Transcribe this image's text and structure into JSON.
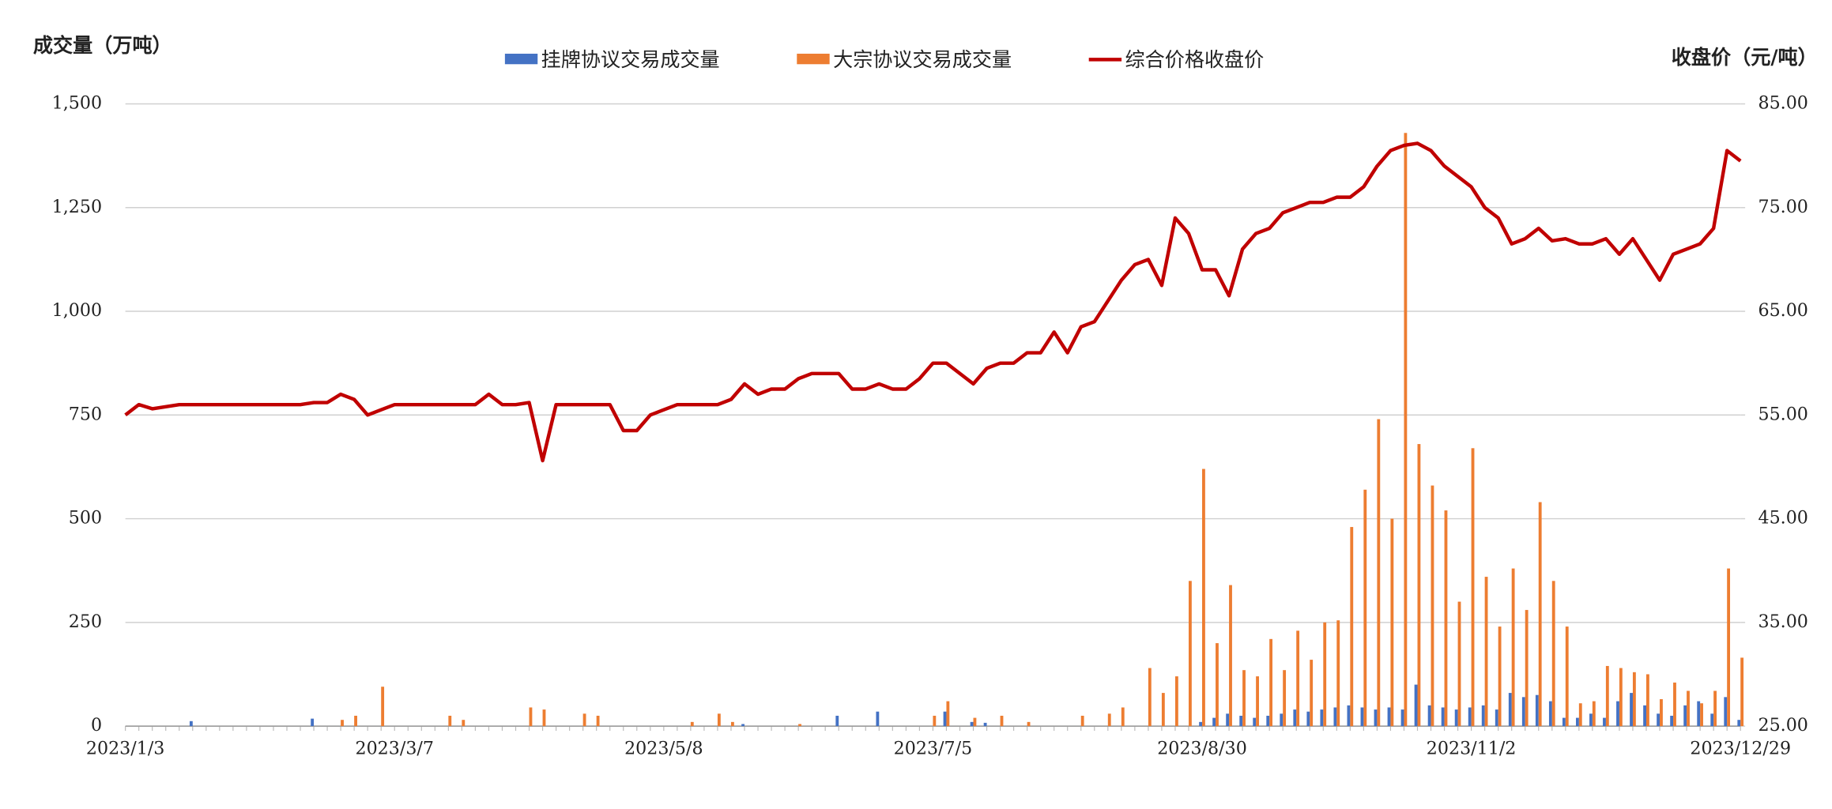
{
  "chart_data": {
    "type": "bar",
    "y_label": "成交量（万吨）",
    "y2_label": "收盘价（元/吨）",
    "categories": [
      "2023/1/3",
      null,
      null,
      null,
      null,
      null,
      null,
      null,
      null,
      null,
      null,
      null,
      null,
      null,
      null,
      null,
      null,
      null,
      null,
      null,
      "2023/3/7",
      null,
      null,
      null,
      null,
      null,
      null,
      null,
      null,
      null,
      null,
      null,
      null,
      null,
      null,
      null,
      null,
      null,
      null,
      null,
      "2023/5/8",
      null,
      null,
      null,
      null,
      null,
      null,
      null,
      null,
      null,
      null,
      null,
      null,
      null,
      null,
      null,
      null,
      null,
      null,
      null,
      "2023/7/5",
      null,
      null,
      null,
      null,
      null,
      null,
      null,
      null,
      null,
      null,
      null,
      null,
      null,
      null,
      null,
      null,
      null,
      null,
      null,
      "2023/8/30",
      null,
      null,
      null,
      null,
      null,
      null,
      null,
      null,
      null,
      null,
      null,
      null,
      null,
      null,
      null,
      null,
      null,
      null,
      null,
      "2023/11/2",
      null,
      null,
      null,
      null,
      null,
      null,
      null,
      null,
      null,
      null,
      null,
      null,
      null,
      null,
      null,
      null,
      null,
      null,
      null,
      "2023/12/29"
    ],
    "series": [
      {
        "name": "挂牌协议交易成交量",
        "type": "bar",
        "color": "#4472c4",
        "values": [
          0,
          0,
          0,
          0,
          0,
          12,
          0,
          0,
          0,
          0,
          0,
          0,
          0,
          0,
          18,
          0,
          0,
          0,
          0,
          0,
          0,
          0,
          0,
          0,
          0,
          0,
          0,
          0,
          0,
          0,
          0,
          0,
          0,
          0,
          0,
          0,
          0,
          0,
          0,
          0,
          0,
          0,
          0,
          0,
          0,
          0,
          5,
          0,
          0,
          0,
          0,
          0,
          0,
          25,
          0,
          0,
          35,
          0,
          0,
          0,
          0,
          35,
          0,
          10,
          8,
          0,
          0,
          0,
          0,
          0,
          0,
          0,
          0,
          0,
          0,
          0,
          0,
          0,
          0,
          0,
          10,
          20,
          30,
          25,
          20,
          25,
          30,
          40,
          35,
          40,
          45,
          50,
          45,
          40,
          45,
          40,
          100,
          50,
          45,
          40,
          45,
          50,
          40,
          80,
          70,
          75,
          60,
          20,
          20,
          30,
          20,
          60,
          80,
          50,
          30,
          25,
          50,
          60,
          30,
          70,
          15
        ]
      },
      {
        "name": "大宗协议交易成交量",
        "type": "bar",
        "color": "#ed7d31",
        "values": [
          0,
          0,
          0,
          0,
          0,
          0,
          0,
          0,
          0,
          0,
          0,
          0,
          0,
          0,
          0,
          0,
          15,
          25,
          0,
          95,
          0,
          0,
          0,
          0,
          25,
          15,
          0,
          0,
          0,
          0,
          45,
          40,
          0,
          0,
          30,
          25,
          0,
          0,
          0,
          0,
          0,
          0,
          10,
          0,
          30,
          10,
          0,
          0,
          0,
          0,
          5,
          0,
          0,
          0,
          0,
          0,
          0,
          0,
          0,
          0,
          25,
          60,
          0,
          20,
          0,
          25,
          0,
          10,
          0,
          0,
          0,
          25,
          0,
          30,
          45,
          0,
          140,
          80,
          120,
          350,
          620,
          200,
          340,
          135,
          120,
          210,
          135,
          230,
          160,
          250,
          255,
          480,
          570,
          740,
          500,
          1430,
          680,
          580,
          520,
          300,
          670,
          360,
          240,
          380,
          280,
          540,
          350,
          240,
          55,
          60,
          145,
          140,
          130,
          125,
          65,
          105,
          85,
          55,
          85,
          380,
          165
        ]
      },
      {
        "name": "综合价格收盘价",
        "type": "line",
        "axis": "y2",
        "color": "#c00000",
        "values": [
          55,
          56,
          55.6,
          55.8,
          56,
          56,
          56,
          56,
          56,
          56,
          56,
          56,
          56,
          56,
          56.2,
          56.2,
          57,
          56.5,
          55,
          55.5,
          56,
          56,
          56,
          56,
          56,
          56,
          56,
          57,
          56,
          56,
          56.2,
          50.6,
          56,
          56,
          56,
          56,
          56,
          53.5,
          53.5,
          55,
          55.5,
          56,
          56,
          56,
          56,
          56.5,
          58,
          57,
          57.5,
          57.5,
          58.5,
          59,
          59,
          59,
          57.5,
          57.5,
          58,
          57.5,
          57.5,
          58.5,
          60,
          60,
          59,
          58,
          59.5,
          60,
          60,
          61,
          61,
          63,
          61,
          63.5,
          64,
          66,
          68,
          69.5,
          70,
          67.5,
          74,
          72.5,
          69,
          69,
          66.5,
          71,
          72.5,
          73,
          74.5,
          75,
          75.5,
          75.5,
          76,
          76,
          77,
          79,
          80.5,
          81,
          81.2,
          80.5,
          79,
          78,
          77,
          75,
          74,
          71.5,
          72,
          73,
          71.8,
          72,
          71.5,
          71.5,
          72,
          70.5,
          72,
          70,
          68,
          70.5,
          71,
          71.5,
          73,
          80.5,
          79.5
        ]
      }
    ],
    "ylim": [
      0,
      1500
    ],
    "yticks": [
      0,
      250,
      500,
      750,
      {
        "value": 1000,
        "label": "1,000"
      },
      {
        "value": 1250,
        "label": "1,250"
      },
      {
        "value": 1500,
        "label": "1,500"
      }
    ],
    "y2lim": [
      25,
      85
    ],
    "y2ticks": [
      {
        "value": 25,
        "label": "25.00"
      },
      {
        "value": 35,
        "label": "35.00"
      },
      {
        "value": 45,
        "label": "45.00"
      },
      {
        "value": 55,
        "label": "55.00"
      },
      {
        "value": 65,
        "label": "65.00"
      },
      {
        "value": 75,
        "label": "75.00"
      },
      {
        "value": 85,
        "label": "85.00"
      }
    ],
    "grid": true,
    "legend": "top"
  }
}
